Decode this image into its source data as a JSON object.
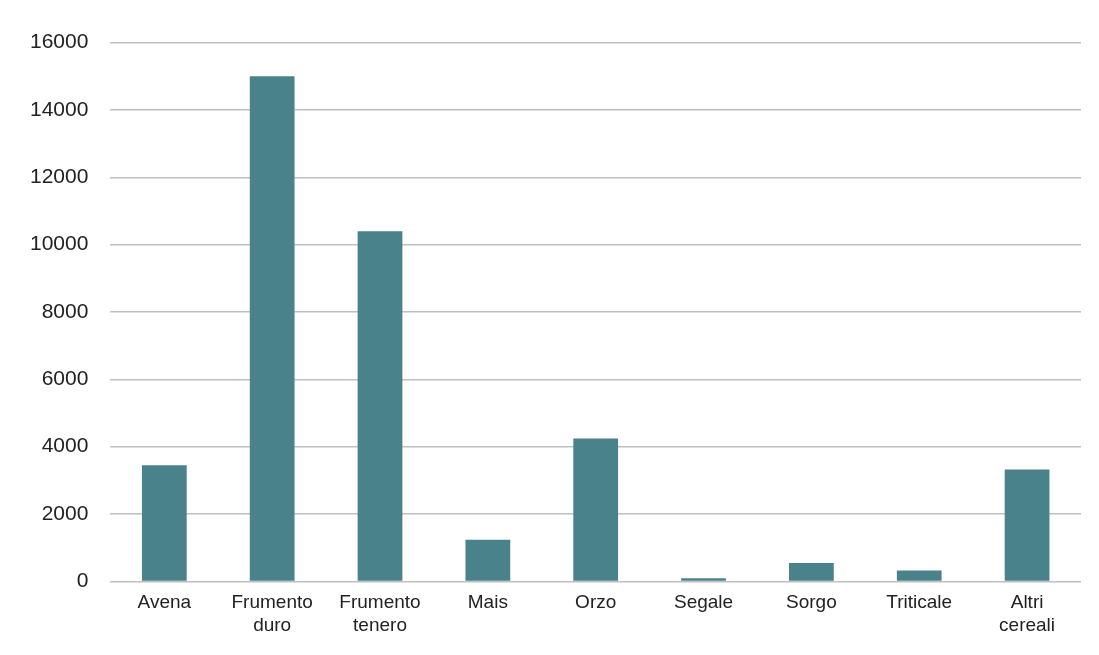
{
  "chart_data": {
    "type": "bar",
    "categories": [
      "Avena",
      "Frumento duro",
      "Frumento tenero",
      "Mais",
      "Orzo",
      "Segale",
      "Sorgo",
      "Triticale",
      "Altri cereali"
    ],
    "values": [
      3450,
      15000,
      10400,
      1240,
      4240,
      90,
      550,
      320,
      3320
    ],
    "color": "#4a828c",
    "ylim": [
      0,
      16000
    ],
    "yticks": [
      0,
      2000,
      4000,
      6000,
      8000,
      10000,
      12000,
      14000,
      16000
    ],
    "grid": "y",
    "legend": false
  }
}
